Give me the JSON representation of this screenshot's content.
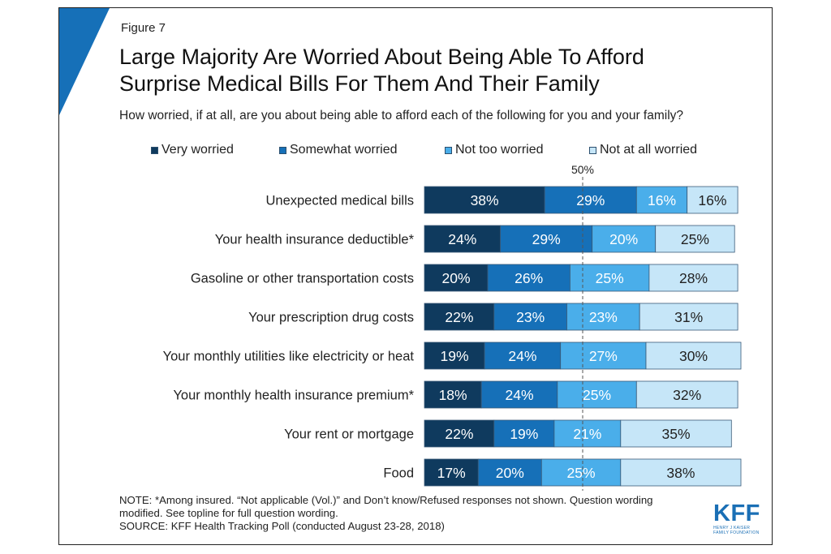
{
  "figure_label": "Figure 7",
  "title_line1": "Large Majority Are Worried About Being Able To Afford",
  "title_line2": "Surprise Medical Bills For Them And Their Family",
  "subtitle": "How worried, if at all, are you about being able to afford each of the following for you and your family?",
  "colors": {
    "accent": "#1670b8"
  },
  "chart_data": {
    "type": "bar",
    "orientation": "horizontal-stacked",
    "categories": [
      "Unexpected medical bills",
      "Your health insurance deductible*",
      "Gasoline or other transportation costs",
      "Your prescription drug costs",
      "Your monthly utilities like electricity or heat",
      "Your monthly health insurance premium*",
      "Your rent or mortgage",
      "Food"
    ],
    "series": [
      {
        "name": "Very worried",
        "color": "#0f3a5e",
        "label_color": "#ffffff",
        "values": [
          38,
          24,
          20,
          22,
          19,
          18,
          22,
          17
        ]
      },
      {
        "name": "Somewhat worried",
        "color": "#1670b8",
        "label_color": "#ffffff",
        "values": [
          29,
          29,
          26,
          23,
          24,
          24,
          19,
          20
        ]
      },
      {
        "name": "Not too worried",
        "color": "#4aaeea",
        "label_color": "#ffffff",
        "values": [
          16,
          20,
          25,
          23,
          27,
          25,
          21,
          25
        ]
      },
      {
        "name": "Not at all worried",
        "color": "#c6e6f8",
        "label_color": "#222222",
        "values": [
          16,
          25,
          28,
          31,
          30,
          32,
          35,
          38
        ]
      }
    ],
    "value_suffix": "%",
    "reference_line": {
      "value": 50,
      "label": "50%"
    },
    "xlim": [
      0,
      100
    ],
    "legend_position": "top",
    "grid": false
  },
  "note_line1": "NOTE: *Among insured. “Not applicable (Vol.)” and Don’t know/Refused responses not shown. Question wording",
  "note_line2": "modified. See topline for full question wording.",
  "source": "SOURCE: KFF Health Tracking Poll (conducted August 23-28, 2018)",
  "logo": {
    "main": "KFF",
    "sub_line1": "HENRY J KAISER",
    "sub_line2": "FAMILY FOUNDATION"
  }
}
